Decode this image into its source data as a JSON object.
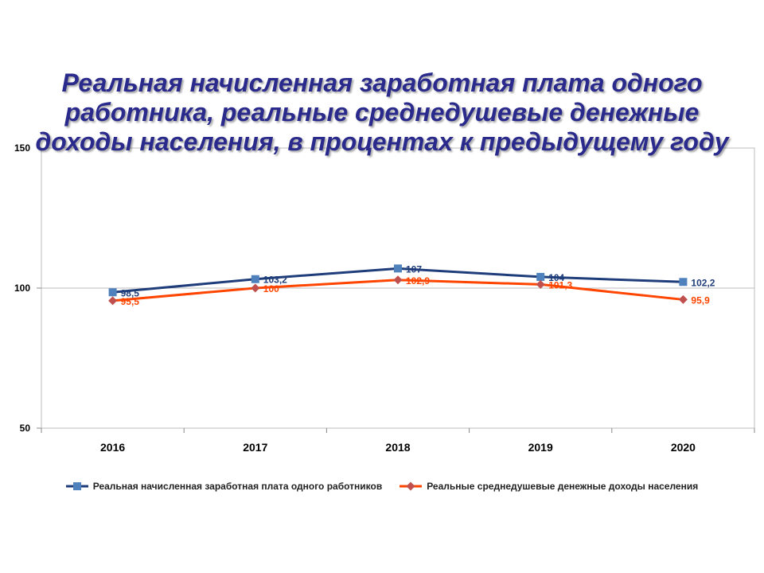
{
  "chart_data": {
    "type": "line",
    "title": "Реальная начисленная заработная плата одного работника, реальные среднедушевые денежные доходы населения, в процентах к предыдущему году",
    "categories": [
      "2016",
      "2017",
      "2018",
      "2019",
      "2020"
    ],
    "ylim": [
      50,
      150
    ],
    "yticks": [
      "150",
      "100",
      "50"
    ],
    "grid": false,
    "legend_position": "bottom",
    "series": [
      {
        "name": "Реальная начисленная заработная плата одного работников",
        "values": [
          98.5,
          103.2,
          107,
          104,
          102.2
        ],
        "labels": [
          "98,5",
          "103,2",
          "107",
          "104",
          "102,2"
        ],
        "color": "#1f3d7a",
        "marker_color": "#4f81bd",
        "marker": "square"
      },
      {
        "name": "Реальные среднедушевые денежные доходы населения",
        "values": [
          95.5,
          100,
          102.9,
          101.3,
          95.9
        ],
        "labels": [
          "95,5",
          "100",
          "102,9",
          "101,3",
          "95,9"
        ],
        "color": "#ff4500",
        "marker_color": "#c0504d",
        "marker": "diamond"
      }
    ]
  }
}
